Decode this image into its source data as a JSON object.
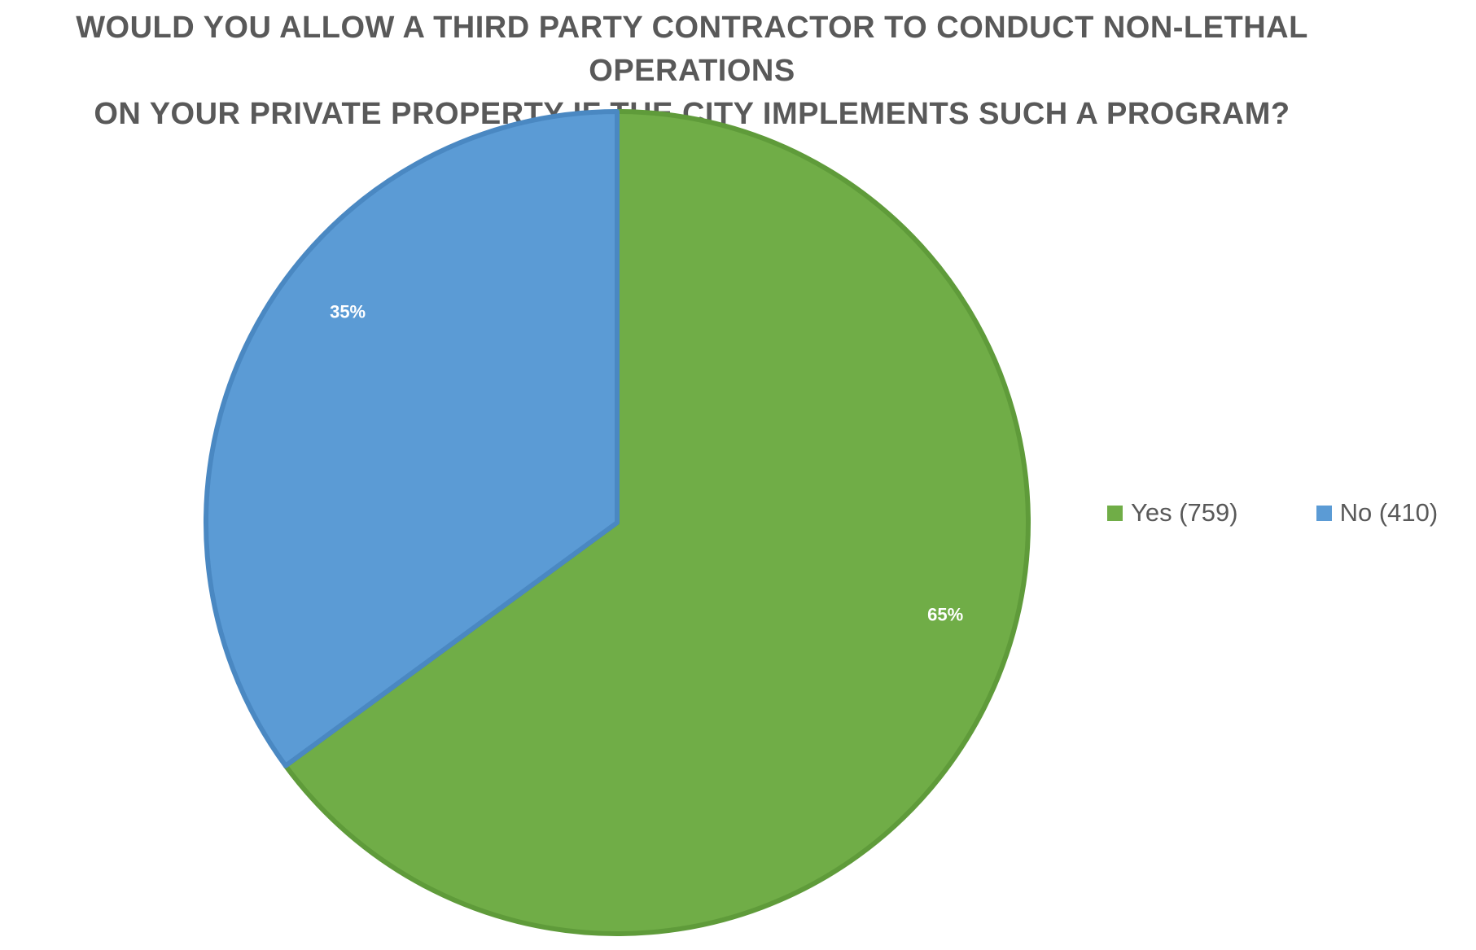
{
  "chart_data": {
    "type": "pie",
    "title_lines": [
      "WOULD YOU ALLOW A THIRD PARTY CONTRACTOR TO CONDUCT NON-LETHAL OPERATIONS",
      "ON YOUR PRIVATE PROPERTY IF THE CITY IMPLEMENTS SUCH A PROGRAM?"
    ],
    "slices": [
      {
        "label": "Yes (759)",
        "value": 759,
        "percent_label": "65%",
        "color": "#70AD47",
        "border": "#5F9B3A"
      },
      {
        "label": "No (410)",
        "value": 410,
        "percent_label": "35%",
        "color": "#5B9BD5",
        "border": "#4A88C2"
      }
    ],
    "start_angle_deg": 0,
    "direction": "clockwise",
    "legend_position": "right"
  }
}
